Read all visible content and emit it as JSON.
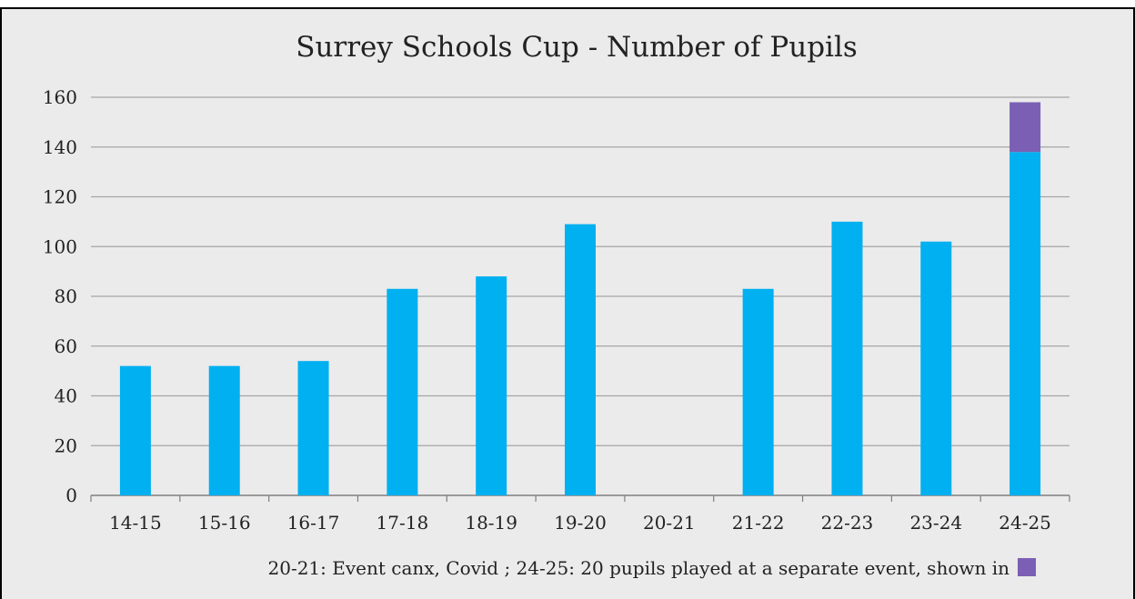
{
  "chart_data": {
    "type": "bar",
    "title": "Surrey Schools Cup - Number of Pupils",
    "xlabel": "",
    "ylabel": "",
    "categories": [
      "14-15",
      "15-16",
      "16-17",
      "17-18",
      "18-19",
      "19-20",
      "20-21",
      "21-22",
      "22-23",
      "23-24",
      "24-25"
    ],
    "series": [
      {
        "values": [
          52,
          52,
          54,
          83,
          88,
          109,
          0,
          83,
          110,
          102,
          138
        ],
        "color": "#00b0f0"
      },
      {
        "values": [
          0,
          0,
          0,
          0,
          0,
          0,
          0,
          0,
          0,
          0,
          20
        ],
        "color": "#7b5fb5"
      }
    ],
    "stacked": true,
    "ylim": [
      0,
      160
    ],
    "yticks": [
      "0",
      "20",
      "40",
      "60",
      "80",
      "100",
      "120",
      "140",
      "160"
    ],
    "grid": true,
    "note": "20-21: Event canx, Covid  ;  24-25: 20 pupils played at a separate event, shown in",
    "colors": {
      "background": "#ebebeb",
      "grid": "#a6a6a6",
      "frame": "#000000"
    }
  }
}
